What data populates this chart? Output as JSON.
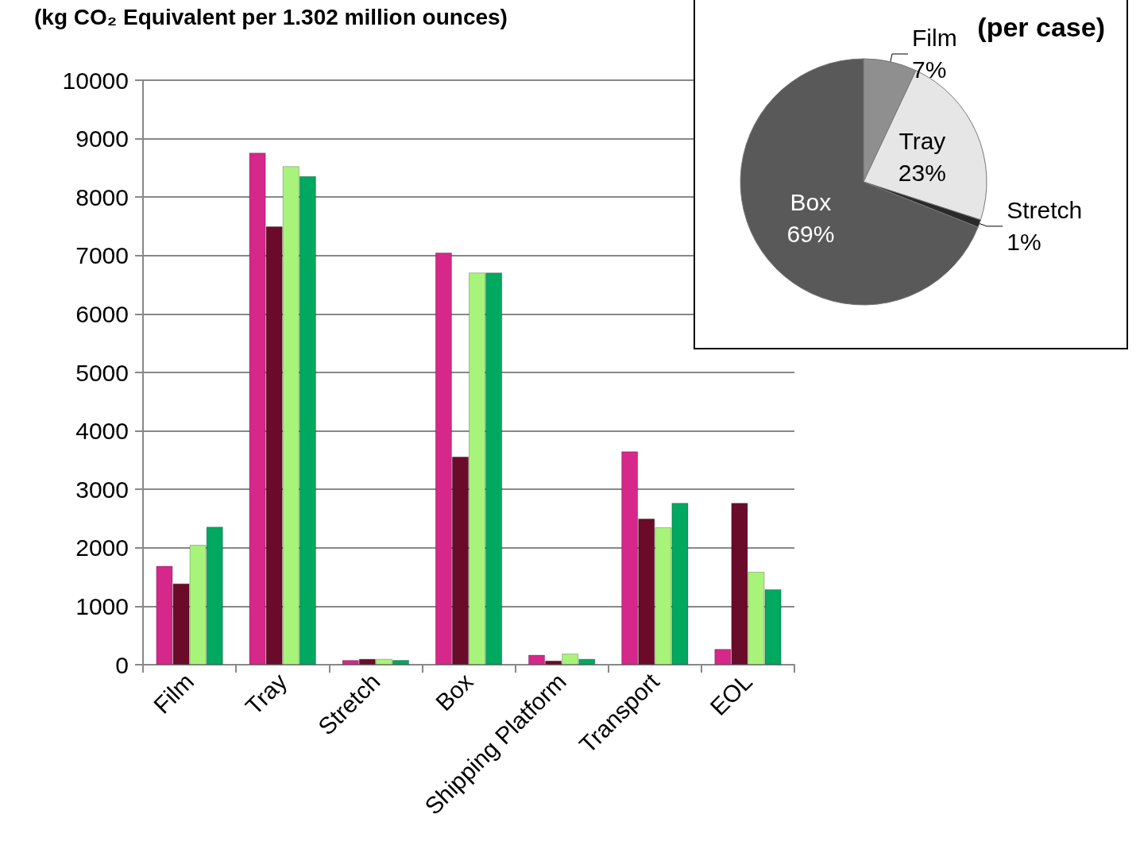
{
  "chart_data": [
    {
      "type": "bar",
      "title": "(kg CO₂ Equivalent per 1.302 million ounces)",
      "categories": [
        "Film",
        "Tray",
        "Stretch",
        "Box",
        "Shipping Platform",
        "Transport",
        "EOL"
      ],
      "series": [
        {
          "color": "#d6278a",
          "values": [
            1690,
            8760,
            80,
            7050,
            170,
            3650,
            270
          ]
        },
        {
          "color": "#6b0b2a",
          "values": [
            1390,
            7500,
            100,
            3560,
            70,
            2500,
            2770
          ]
        },
        {
          "color": "#a8f47a",
          "values": [
            2050,
            8530,
            100,
            6710,
            190,
            2350,
            1590
          ]
        },
        {
          "color": "#00a860",
          "values": [
            2360,
            8360,
            80,
            6710,
            100,
            2770,
            1290
          ]
        }
      ],
      "ylim": [
        0,
        10000
      ],
      "yticks": [
        0,
        1000,
        2000,
        3000,
        4000,
        5000,
        6000,
        7000,
        8000,
        9000,
        10000
      ],
      "grid": "y"
    },
    {
      "type": "pie",
      "title": "(per case)",
      "categories": [
        "Film",
        "Tray",
        "Stretch",
        "Box"
      ],
      "values": [
        7,
        23,
        1,
        69
      ],
      "colors": [
        "#8f8f8f",
        "#e6e6e6",
        "#2a2a2a",
        "#595959"
      ],
      "value_labels": [
        "7%",
        "23%",
        "1%",
        "69%"
      ]
    }
  ]
}
